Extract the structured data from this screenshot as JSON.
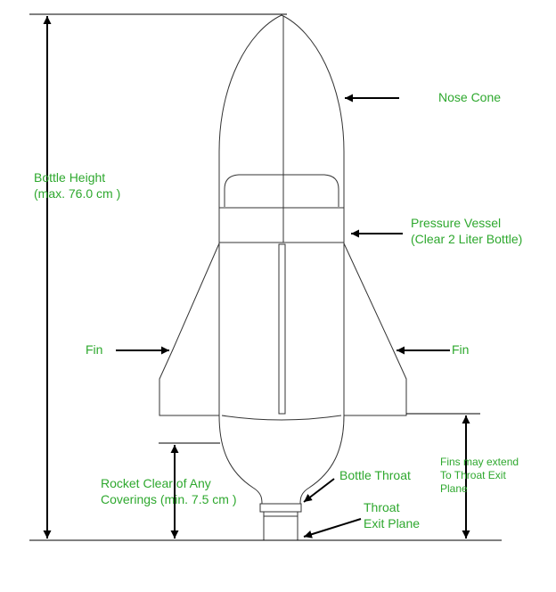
{
  "colors": {
    "label": "#2ea82e",
    "line": "#000000",
    "outline": "#333333",
    "background": "#ffffff"
  },
  "labels": {
    "nose_cone": "Nose Cone",
    "bottle_height": [
      "Bottle Height",
      "(max. 76.0 cm )"
    ],
    "pressure_vessel": [
      "Pressure Vessel",
      "(Clear 2 Liter Bottle)"
    ],
    "fin_left": "Fin",
    "fin_right": "Fin",
    "fins_extend": [
      "Fins may extend",
      "To Throat Exit",
      "Plane"
    ],
    "rocket_clear": [
      "Rocket Clear of Any",
      "Coverings (min. 7.5 cm )"
    ],
    "bottle_throat": "Bottle Throat",
    "throat_exit": [
      "Throat",
      "Exit Plane"
    ]
  }
}
